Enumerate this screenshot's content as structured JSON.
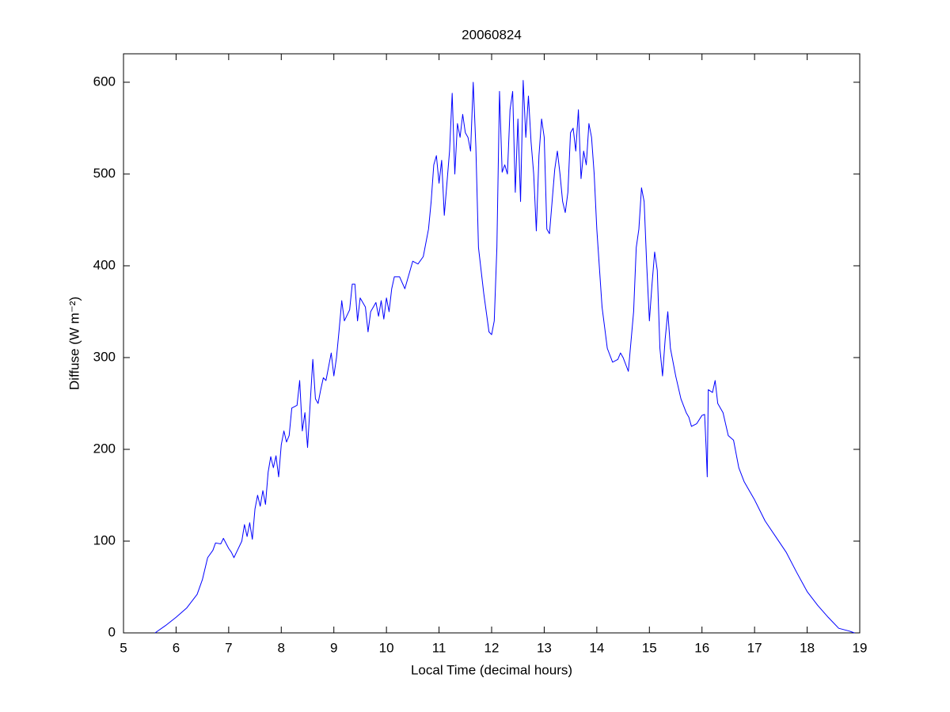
{
  "chart_data": {
    "type": "line",
    "title": "20060824",
    "xlabel": "Local Time (decimal hours)",
    "ylabel": "Diffuse (W m⁻²)",
    "xlim": [
      5,
      19
    ],
    "ylim": [
      0,
      631
    ],
    "xticks": [
      5,
      6,
      7,
      8,
      9,
      10,
      11,
      12,
      13,
      14,
      15,
      16,
      17,
      18,
      19
    ],
    "yticks": [
      0,
      100,
      200,
      300,
      400,
      500,
      600
    ],
    "grid": false,
    "x": [
      5.6,
      5.8,
      6.0,
      6.2,
      6.4,
      6.5,
      6.6,
      6.7,
      6.75,
      6.85,
      6.9,
      7.0,
      7.05,
      7.1,
      7.15,
      7.25,
      7.3,
      7.35,
      7.4,
      7.45,
      7.5,
      7.55,
      7.6,
      7.65,
      7.7,
      7.75,
      7.8,
      7.85,
      7.9,
      7.95,
      8.0,
      8.05,
      8.1,
      8.15,
      8.2,
      8.3,
      8.35,
      8.4,
      8.45,
      8.5,
      8.55,
      8.6,
      8.65,
      8.7,
      8.75,
      8.8,
      8.85,
      8.9,
      8.95,
      9.0,
      9.05,
      9.1,
      9.15,
      9.2,
      9.3,
      9.35,
      9.4,
      9.45,
      9.5,
      9.6,
      9.65,
      9.7,
      9.8,
      9.85,
      9.9,
      9.95,
      10.0,
      10.05,
      10.1,
      10.15,
      10.25,
      10.35,
      10.45,
      10.5,
      10.6,
      10.7,
      10.8,
      10.85,
      10.9,
      10.95,
      11.0,
      11.05,
      11.1,
      11.15,
      11.2,
      11.25,
      11.3,
      11.35,
      11.4,
      11.45,
      11.5,
      11.55,
      11.6,
      11.65,
      11.7,
      11.75,
      11.85,
      11.95,
      12.0,
      12.05,
      12.1,
      12.15,
      12.2,
      12.25,
      12.3,
      12.35,
      12.4,
      12.45,
      12.5,
      12.55,
      12.6,
      12.65,
      12.7,
      12.75,
      12.8,
      12.85,
      12.9,
      12.95,
      13.0,
      13.05,
      13.1,
      13.15,
      13.2,
      13.25,
      13.3,
      13.35,
      13.4,
      13.45,
      13.5,
      13.55,
      13.6,
      13.65,
      13.7,
      13.75,
      13.8,
      13.85,
      13.9,
      13.95,
      14.0,
      14.1,
      14.2,
      14.3,
      14.4,
      14.45,
      14.5,
      14.6,
      14.7,
      14.75,
      14.8,
      14.85,
      14.9,
      14.95,
      15.0,
      15.05,
      15.1,
      15.15,
      15.2,
      15.25,
      15.3,
      15.35,
      15.4,
      15.5,
      15.6,
      15.7,
      15.75,
      15.8,
      15.9,
      16.0,
      16.05,
      16.08,
      16.1,
      16.12,
      16.2,
      16.25,
      16.3,
      16.4,
      16.5,
      16.6,
      16.7,
      16.8,
      16.9,
      17.0,
      17.2,
      17.4,
      17.6,
      17.8,
      18.0,
      18.2,
      18.4,
      18.6,
      18.8,
      18.9
    ],
    "series": [
      {
        "color": "#0000ff",
        "values": [
          0,
          8,
          17,
          27,
          42,
          58,
          82,
          90,
          98,
          97,
          103,
          92,
          88,
          82,
          88,
          100,
          118,
          105,
          120,
          102,
          135,
          150,
          138,
          155,
          140,
          175,
          192,
          180,
          193,
          170,
          205,
          220,
          208,
          215,
          245,
          248,
          275,
          220,
          240,
          202,
          250,
          298,
          255,
          250,
          265,
          278,
          275,
          290,
          305,
          280,
          300,
          330,
          362,
          340,
          352,
          380,
          380,
          340,
          365,
          355,
          328,
          350,
          360,
          345,
          362,
          342,
          365,
          350,
          375,
          388,
          388,
          375,
          395,
          405,
          402,
          410,
          440,
          470,
          510,
          520,
          490,
          515,
          455,
          490,
          525,
          588,
          500,
          555,
          540,
          565,
          545,
          540,
          525,
          600,
          530,
          420,
          370,
          328,
          325,
          340,
          420,
          590,
          502,
          510,
          500,
          570,
          590,
          480,
          560,
          470,
          602,
          540,
          585,
          535,
          500,
          438,
          520,
          560,
          540,
          440,
          435,
          470,
          505,
          525,
          500,
          470,
          458,
          480,
          545,
          550,
          525,
          570,
          495,
          525,
          510,
          555,
          540,
          500,
          440,
          355,
          310,
          295,
          298,
          305,
          300,
          285,
          350,
          420,
          440,
          485,
          470,
          400,
          340,
          380,
          415,
          395,
          310,
          280,
          320,
          350,
          310,
          280,
          255,
          240,
          235,
          225,
          228,
          237,
          238,
          200,
          170,
          265,
          262,
          275,
          250,
          240,
          215,
          210,
          180,
          165,
          155,
          145,
          122,
          105,
          88,
          66,
          45,
          30,
          17,
          5,
          2,
          0
        ]
      }
    ]
  }
}
